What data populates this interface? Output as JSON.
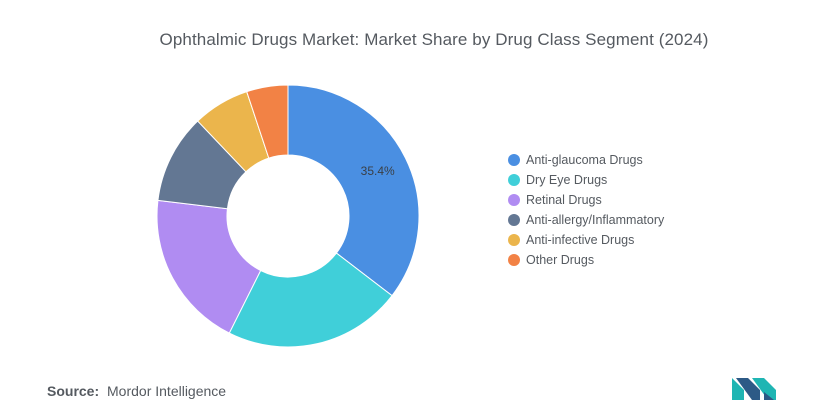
{
  "chart_data": {
    "type": "pie",
    "title": "Ophthalmic Drugs Market: Market Share by Drug Class Segment (2024)",
    "donut": true,
    "legend_position": "right",
    "categories": [
      "Anti-glaucoma Drugs",
      "Dry Eye Drugs",
      "Retinal Drugs",
      "Anti-allergy/Inflammatory",
      "Anti-infective Drugs",
      "Other Drugs"
    ],
    "values": [
      35.4,
      22.0,
      19.5,
      11.0,
      7.0,
      5.1
    ],
    "colors": [
      "#4a8fe2",
      "#40cfd9",
      "#b08cf2",
      "#637793",
      "#ebb54c",
      "#f28245"
    ],
    "data_labels": [
      "35.4%",
      "",
      "",
      "",
      "",
      ""
    ]
  },
  "source": {
    "key": "Source:",
    "value": "Mordor Intelligence"
  },
  "logo_name": "mordor-intelligence-logo"
}
